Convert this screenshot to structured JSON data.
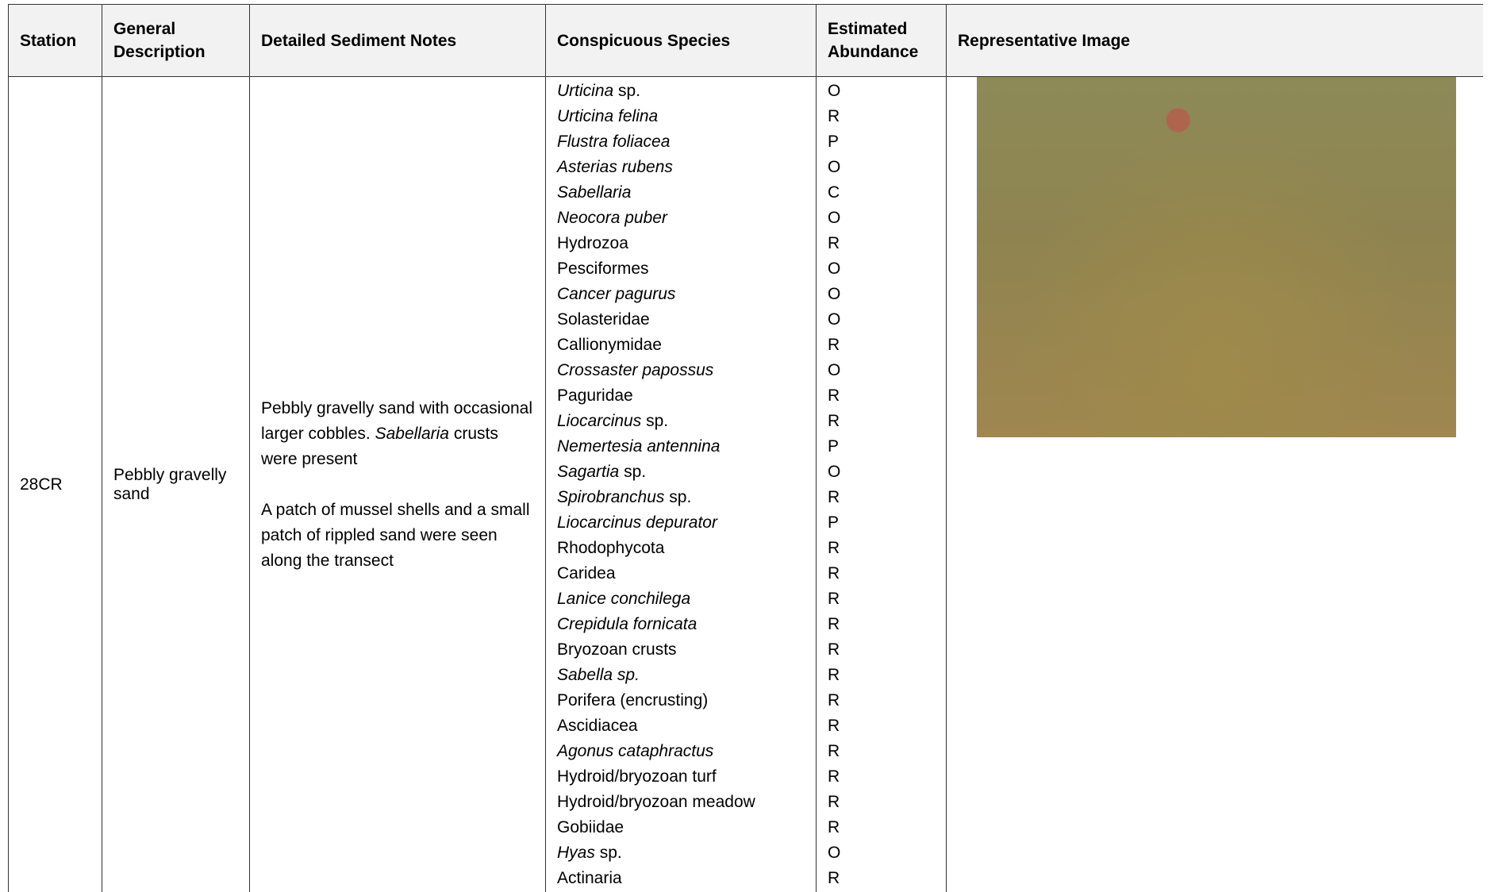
{
  "table": {
    "columns": [
      "Station",
      "General Description",
      "Detailed Sediment Notes",
      "Conspicuous Species",
      "Estimated Abundance",
      "Representative Image"
    ],
    "rows": [
      {
        "station": "28CR",
        "description": "Pebbly gravelly sand",
        "notes": [
          [
            {
              "text": "Pebbly gravelly sand with occasional larger cobbles."
            },
            {
              "text": "Sabellaria",
              "italic": true
            },
            {
              "text": "crusts were present"
            }
          ],
          [
            {
              "text": "A patch of mussel shells and a small patch of rippled sand were seen along the transect"
            }
          ]
        ],
        "species": [
          {
            "name": "Urticina",
            "italic": true,
            "suffix": "sp."
          },
          {
            "name": "Urticina felina",
            "italic": true
          },
          {
            "name": "Flustra foliacea",
            "italic": true
          },
          {
            "name": "Asterias rubens",
            "italic": true
          },
          {
            "name": "Sabellaria",
            "italic": true
          },
          {
            "name": "Neocora puber",
            "italic": true
          },
          {
            "name": "Hydrozoa"
          },
          {
            "name": "Pesciformes"
          },
          {
            "name": "Cancer pagurus",
            "italic": true
          },
          {
            "name": "Solasteridae"
          },
          {
            "name": "Callionymidae"
          },
          {
            "name": "Crossaster papossus",
            "italic": true
          },
          {
            "name": "Paguridae"
          },
          {
            "name": "Liocarcinus",
            "italic": true,
            "suffix": "sp."
          },
          {
            "name": "Nemertesia antennina",
            "italic": true
          },
          {
            "name": "Sagartia",
            "italic": true,
            "suffix": "sp."
          },
          {
            "name": "Spirobranchus",
            "italic": true,
            "suffix": "sp."
          },
          {
            "name": "Liocarcinus depurator",
            "italic": true
          },
          {
            "name": "Rhodophycota"
          },
          {
            "name": "Caridea"
          },
          {
            "name": "Lanice conchilega",
            "italic": true
          },
          {
            "name": "Crepidula fornicata",
            "italic": true
          },
          {
            "name": "Bryozoan crusts"
          },
          {
            "name": "Sabella sp.",
            "italic": true
          },
          {
            "name": "Porifera (encrusting)"
          },
          {
            "name": "Ascidiacea"
          },
          {
            "name": "Agonus cataphractus",
            "italic": true
          },
          {
            "name": "Hydroid/bryozoan turf"
          },
          {
            "name": "Hydroid/bryozoan meadow"
          },
          {
            "name": "Gobiidae"
          },
          {
            "name": "Hyas",
            "italic": true,
            "suffix": "sp."
          },
          {
            "name": "Actinaria"
          }
        ],
        "abundance": [
          "O",
          "R",
          "P",
          "O",
          "C",
          "O",
          "R",
          "O",
          "O",
          "O",
          "R",
          "O",
          "R",
          "R",
          "P",
          "O",
          "R",
          "P",
          "R",
          "R",
          "R",
          "R",
          "R",
          "R",
          "R",
          "R",
          "R",
          "R",
          "R",
          "R",
          "O",
          "R"
        ]
      }
    ]
  }
}
